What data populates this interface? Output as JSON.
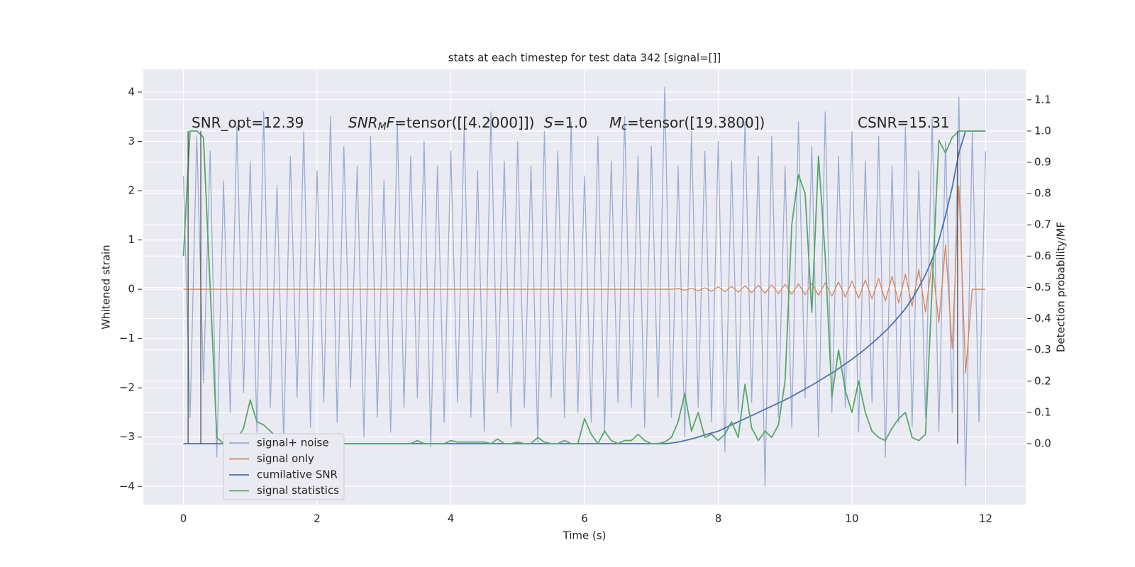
{
  "chart_data": {
    "type": "line",
    "title": "stats at each timestep for test data 342 [signal=[]]",
    "xlabel": "Time (s)",
    "ylabel": "Whitened strain",
    "y2label": "Detection probability/MF",
    "annotations": [
      [
        "SNR_opt=12.39"
      ],
      [
        "SNR",
        "M",
        "F",
        "=tensor([[4.2000]])"
      ],
      [
        "S",
        "=1.0"
      ],
      [
        "M",
        "c",
        "=tensor([19.3800])"
      ],
      [
        "CSNR=15.31"
      ]
    ],
    "xlim": [
      -0.6,
      12.6
    ],
    "xticks": [
      0,
      2,
      4,
      6,
      8,
      10,
      12
    ],
    "ylim": [
      -4.37,
      4.46
    ],
    "yticks": [
      {
        "value": -4,
        "label": "−4"
      },
      {
        "value": -3,
        "label": "−3"
      },
      {
        "value": -2,
        "label": "−2"
      },
      {
        "value": -1,
        "label": "−1"
      },
      0,
      1,
      2,
      3,
      4
    ],
    "y2lim": [
      -0.195,
      1.197
    ],
    "y2ticks": [
      {
        "value": 0,
        "label": "0.0"
      },
      0.1,
      0.2,
      0.3,
      0.4,
      0.5,
      0.6,
      0.7,
      0.8,
      0.9,
      {
        "value": 1,
        "label": "1.0"
      },
      1.1
    ],
    "grid": true,
    "legend": "lower left",
    "vlines": [
      0.07,
      0.26,
      11.58
    ],
    "x": [
      0,
      0.1,
      0.2,
      0.3,
      0.4,
      0.5,
      0.6,
      0.7,
      0.8,
      0.9,
      1,
      1.1,
      1.2,
      1.3,
      1.4,
      1.5,
      1.6,
      1.7,
      1.8,
      1.9,
      2,
      2.1,
      2.2,
      2.3,
      2.4,
      2.5,
      2.6,
      2.7,
      2.8,
      2.9,
      3,
      3.1,
      3.2,
      3.3,
      3.4,
      3.5,
      3.6,
      3.7,
      3.8,
      3.9,
      4,
      4.1,
      4.2,
      4.3,
      4.4,
      4.5,
      4.6,
      4.7,
      4.8,
      4.9,
      5,
      5.1,
      5.2,
      5.3,
      5.4,
      5.5,
      5.6,
      5.7,
      5.8,
      5.9,
      6,
      6.1,
      6.2,
      6.3,
      6.4,
      6.5,
      6.6,
      6.7,
      6.8,
      6.9,
      7,
      7.1,
      7.2,
      7.3,
      7.4,
      7.5,
      7.6,
      7.7,
      7.8,
      7.9,
      8,
      8.1,
      8.2,
      8.3,
      8.4,
      8.5,
      8.6,
      8.7,
      8.8,
      8.9,
      9,
      9.1,
      9.2,
      9.3,
      9.4,
      9.5,
      9.6,
      9.7,
      9.8,
      9.9,
      10,
      10.1,
      10.2,
      10.3,
      10.4,
      10.5,
      10.6,
      10.7,
      10.8,
      10.9,
      11,
      11.1,
      11.2,
      11.3,
      11.4,
      11.5,
      11.6,
      11.7,
      11.8,
      11.9,
      12
    ],
    "series": [
      {
        "name": "signal+ noise",
        "color": "#9aadd3",
        "axis": "y",
        "values": [
          2.3,
          -2.6,
          3.1,
          -1.9,
          2.8,
          -3.4,
          2.2,
          -2.5,
          3.3,
          -2.1,
          2.6,
          -2.9,
          3.6,
          -2.4,
          2.1,
          -3.1,
          2.7,
          -2.2,
          3.2,
          -2.8,
          2.4,
          -2.3,
          3.5,
          -2.7,
          2.9,
          -2.0,
          2.5,
          -3.0,
          3.1,
          -2.6,
          2.2,
          -2.9,
          3.4,
          -2.4,
          2.7,
          -2.2,
          3.0,
          -3.2,
          2.5,
          -2.7,
          2.8,
          -2.3,
          3.3,
          -2.6,
          2.4,
          -2.9,
          3.6,
          -2.1,
          2.6,
          -2.8,
          3.0,
          -2.4,
          2.5,
          -3.1,
          3.2,
          -2.2,
          2.8,
          -2.6,
          3.4,
          -2.5,
          2.3,
          -2.7,
          3.1,
          -2.9,
          2.6,
          -2.3,
          3.5,
          -2.4,
          2.7,
          -2.8,
          2.9,
          -2.2,
          4.1,
          -2.6,
          2.5,
          -3.0,
          3.2,
          -2.4,
          2.8,
          -2.7,
          3.0,
          -3.3,
          2.6,
          -2.5,
          3.4,
          -2.3,
          2.7,
          -4.0,
          3.1,
          -2.6,
          2.5,
          -2.8,
          3.4,
          -2.2,
          2.9,
          -3.0,
          3.6,
          -2.5,
          2.7,
          -2.4,
          3.2,
          -2.9,
          2.6,
          -2.3,
          3.1,
          -3.4,
          2.5,
          -2.7,
          3.3,
          -2.8,
          2.4,
          -2.6,
          3.5,
          -2.9,
          3.0,
          -2.5,
          3.9,
          -4.0,
          3.2,
          -2.7,
          2.8
        ]
      },
      {
        "name": "signal only",
        "color": "#dd8452",
        "axis": "y",
        "values": [
          0,
          0,
          0,
          0,
          0,
          0,
          0,
          0,
          0,
          0,
          0,
          0,
          0,
          0,
          0,
          0,
          0,
          0,
          0,
          0,
          0,
          0,
          0,
          0,
          0,
          0,
          0,
          0,
          0,
          0,
          0,
          0,
          0,
          0,
          0,
          0,
          0,
          0,
          0,
          0,
          0,
          0,
          0,
          0,
          0,
          0,
          0,
          0,
          0,
          0,
          0,
          0,
          0,
          0,
          0,
          0,
          0,
          0,
          0,
          0,
          0,
          0,
          0,
          0,
          0,
          0,
          0,
          0,
          0,
          0,
          0,
          0,
          0,
          0,
          0.01,
          -0.02,
          0.02,
          -0.03,
          0.03,
          -0.04,
          0.05,
          -0.05,
          0.06,
          -0.06,
          0.07,
          -0.07,
          0.08,
          -0.08,
          0.09,
          -0.09,
          0.1,
          -0.1,
          0.11,
          -0.11,
          0.12,
          -0.12,
          0.13,
          -0.14,
          0.15,
          -0.16,
          0.17,
          -0.18,
          0.19,
          -0.2,
          0.22,
          -0.24,
          0.26,
          -0.28,
          0.31,
          -0.35,
          0.4,
          -0.46,
          0.55,
          -0.68,
          0.9,
          -1.2,
          2.1,
          -1.7,
          0,
          0,
          0
        ]
      },
      {
        "name": "cumilative SNR",
        "color": "#4c72b0",
        "axis": "y2",
        "values": [
          0,
          0,
          0,
          0,
          0,
          0,
          0,
          0,
          0,
          0,
          0,
          0,
          0,
          0,
          0,
          0,
          0,
          0,
          0,
          0,
          0,
          0,
          0,
          0,
          0,
          0,
          0,
          0,
          0,
          0,
          0,
          0,
          0,
          0,
          0,
          0,
          0,
          0,
          0,
          0,
          0,
          0,
          0,
          0,
          0,
          0,
          0,
          0,
          0,
          0,
          0,
          0,
          0,
          0,
          0,
          0,
          0,
          0,
          0,
          0,
          0,
          0,
          0,
          0,
          0,
          0,
          0,
          0,
          0,
          0,
          0,
          0,
          0,
          0.002,
          0.005,
          0.01,
          0.015,
          0.021,
          0.028,
          0.034,
          0.04,
          0.05,
          0.06,
          0.07,
          0.08,
          0.09,
          0.1,
          0.11,
          0.12,
          0.13,
          0.14,
          0.151,
          0.163,
          0.175,
          0.187,
          0.2,
          0.213,
          0.226,
          0.24,
          0.255,
          0.27,
          0.286,
          0.303,
          0.321,
          0.34,
          0.36,
          0.382,
          0.406,
          0.432,
          0.463,
          0.5,
          0.54,
          0.59,
          0.65,
          0.73,
          0.82,
          0.93,
          1.0,
          1.0,
          1.0,
          1.0
        ]
      },
      {
        "name": "signal statistics",
        "color": "#55a868",
        "axis": "y2",
        "values": [
          0.6,
          1.0,
          1.0,
          0.98,
          0.5,
          0.02,
          0,
          0,
          0.01,
          0.05,
          0.14,
          0.07,
          0.06,
          0.04,
          0.02,
          0,
          0,
          0,
          0,
          0,
          0,
          0.005,
          0,
          0,
          0,
          0,
          0,
          0,
          0,
          0,
          0,
          0,
          0,
          0,
          0,
          0.01,
          0,
          0,
          0,
          0,
          0.01,
          0.005,
          0.005,
          0.005,
          0.005,
          0.005,
          0,
          0.015,
          0,
          0,
          0.005,
          0,
          0,
          0.02,
          0.005,
          0,
          0,
          0.01,
          0,
          0,
          0.08,
          0.03,
          0,
          0.04,
          0.01,
          0,
          0.01,
          0.01,
          0.03,
          0.01,
          0,
          0,
          0.005,
          0.02,
          0.07,
          0.16,
          0.04,
          0.1,
          0.02,
          0.03,
          0.01,
          0.03,
          0.07,
          0.02,
          0.19,
          0.05,
          0.01,
          0.04,
          0.02,
          0.06,
          0.2,
          0.7,
          0.86,
          0.8,
          0.42,
          0.92,
          0.6,
          0.15,
          0.3,
          0.17,
          0.1,
          0.2,
          0.1,
          0.04,
          0.02,
          0.01,
          0.05,
          0.08,
          0.1,
          0.02,
          0.01,
          0.03,
          0.5,
          0.97,
          0.93,
          0.98,
          1.0,
          1.0,
          1.0,
          1.0,
          1.0
        ]
      }
    ]
  }
}
